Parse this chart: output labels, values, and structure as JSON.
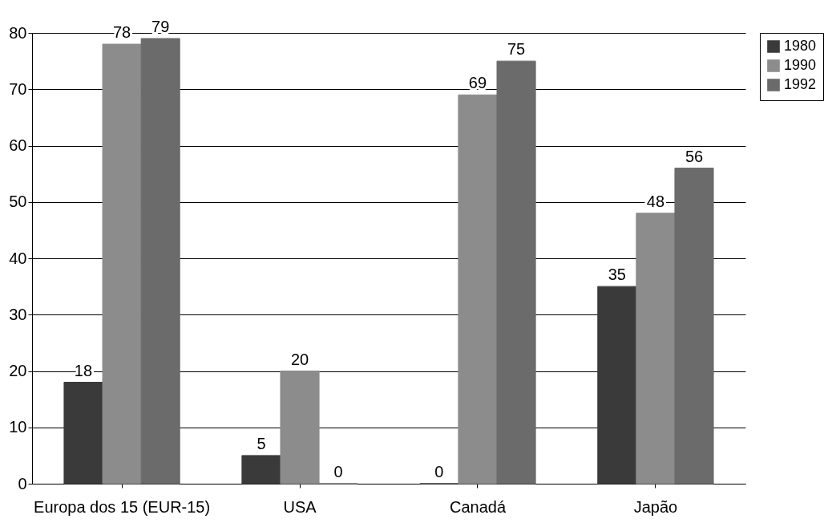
{
  "chart_data": {
    "type": "bar",
    "categories": [
      "Europa dos 15 (EUR-15)",
      "USA",
      "Canadá",
      "Japão"
    ],
    "series": [
      {
        "name": "1980",
        "color": "#3a3a3a",
        "values": [
          18,
          5,
          0,
          35
        ]
      },
      {
        "name": "1990",
        "color": "#8c8c8c",
        "values": [
          78,
          20,
          69,
          48
        ]
      },
      {
        "name": "1992",
        "color": "#6b6b6b",
        "values": [
          79,
          0,
          75,
          56
        ]
      }
    ],
    "ylim": [
      0,
      80
    ],
    "yticks": [
      0,
      10,
      20,
      30,
      40,
      50,
      60,
      70,
      80
    ],
    "grid": "y",
    "legend": "right",
    "data_labels": true
  }
}
